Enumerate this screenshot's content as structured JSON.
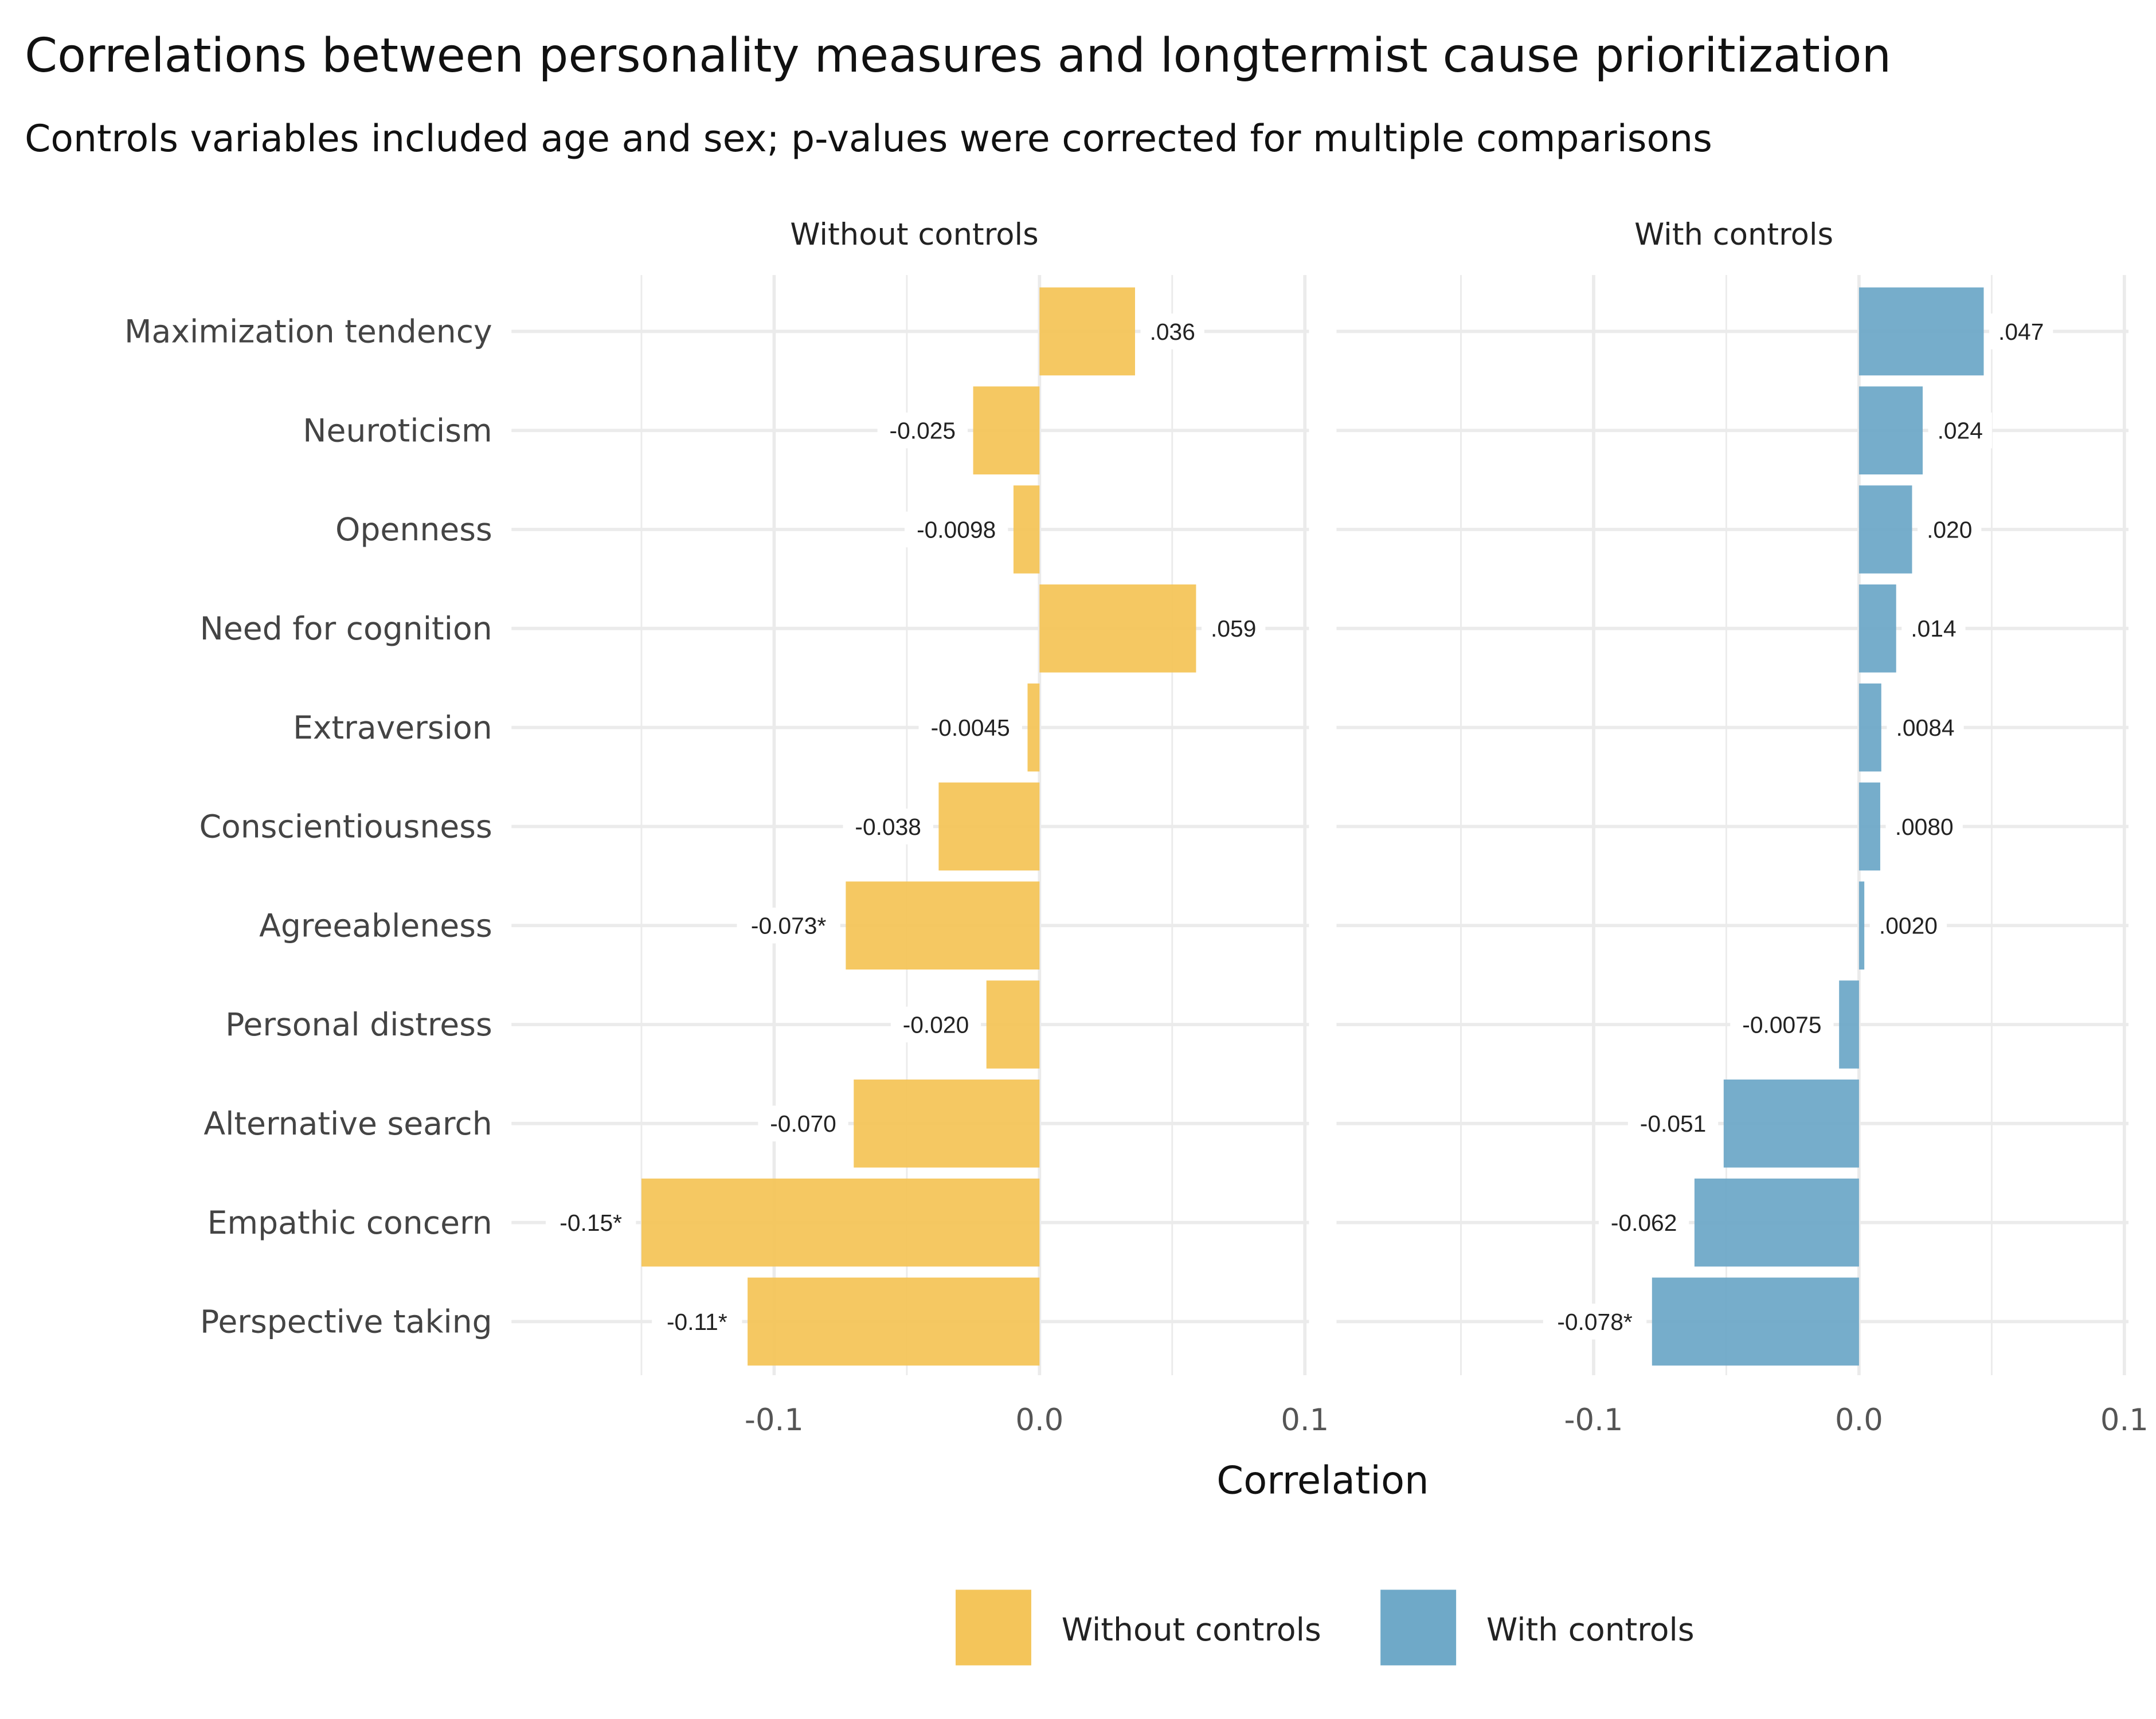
{
  "chart_data": {
    "type": "bar",
    "orientation": "horizontal",
    "title": "Correlations between personality measures and longtermist cause prioritization",
    "subtitle": "Controls variables included age and sex; p-values were corrected for multiple comparisons",
    "xlabel": "Correlation",
    "ylabel": "",
    "xlim": [
      -0.17,
      0.1
    ],
    "x_ticks": [
      "-0.1",
      "0.0",
      "0.1"
    ],
    "grid": true,
    "legend_position": "bottom",
    "categories": [
      "Maximization tendency",
      "Neuroticism",
      "Openness",
      "Need for cognition",
      "Extraversion",
      "Conscientiousness",
      "Agreeableness",
      "Personal distress",
      "Alternative search",
      "Empathic concern",
      "Perspective taking"
    ],
    "series": [
      {
        "name": "Without controls",
        "color": "#F4C55A",
        "values": [
          0.036,
          -0.025,
          -0.0098,
          0.059,
          -0.0045,
          -0.038,
          -0.073,
          -0.02,
          -0.07,
          -0.15,
          -0.11
        ],
        "labels": [
          ".036",
          "-0.025",
          "-0.0098",
          ".059",
          "-0.0045",
          "-0.038",
          "-0.073*",
          "-0.020",
          "-0.070",
          "-0.15*",
          "-0.11*"
        ]
      },
      {
        "name": "With controls",
        "color": "#6FA9C8",
        "values": [
          0.047,
          0.024,
          0.02,
          0.014,
          0.0084,
          0.008,
          0.002,
          -0.0075,
          -0.051,
          -0.062,
          -0.078
        ],
        "labels": [
          ".047",
          ".024",
          ".020",
          ".014",
          ".0084",
          ".0080",
          ".0020",
          "-0.0075",
          "-0.051",
          "-0.062",
          "-0.078*"
        ]
      }
    ],
    "facets": [
      "Without controls",
      "With controls"
    ]
  }
}
